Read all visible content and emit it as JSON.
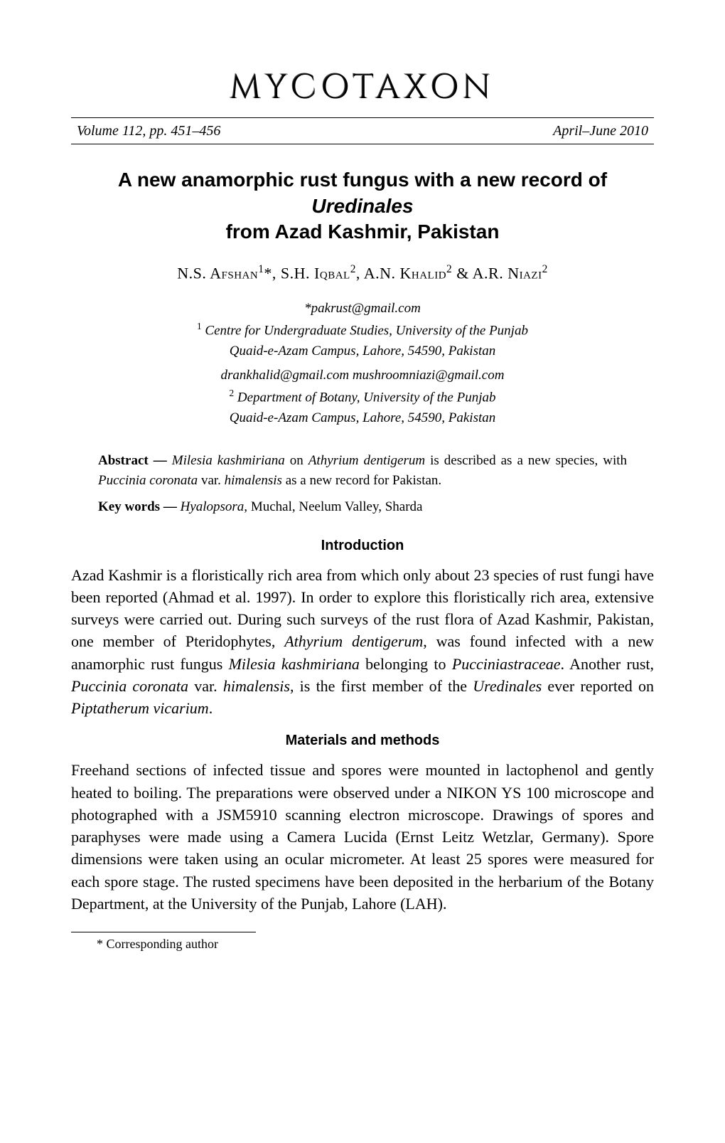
{
  "journal": {
    "title": "MYCOTAXON",
    "volume": "Volume 112, pp. 451–456",
    "date": "April–June 2010"
  },
  "article": {
    "title_line1": "A new anamorphic rust fungus with a new record of ",
    "title_italic": "Uredinales",
    "title_line2": "from Azad Kashmir, Pakistan"
  },
  "authors": {
    "a1_name": "N.S. Afshan",
    "a1_sup": "1",
    "a1_mark": "*",
    "sep1": ", ",
    "a2_name": "S.H. Iqbal",
    "a2_sup": "2",
    "sep2": ", ",
    "a3_name": "A.N. Khalid",
    "a3_sup": "2",
    "sep3": " & ",
    "a4_name": "A.R. Niazi",
    "a4_sup": "2"
  },
  "affiliations": {
    "email1": "*pakrust@gmail.com",
    "aff1_sup": "1",
    "aff1_line1": " Centre for Undergraduate Studies, University of the Punjab",
    "aff1_line2": "Quaid-e-Azam Campus, Lahore, 54590, Pakistan",
    "emails2": "drankhalid@gmail.com  mushroomniazi@gmail.com",
    "aff2_sup": "2",
    "aff2_line1": " Department of Botany, University of the Punjab",
    "aff2_line2": "Quaid-e-Azam Campus, Lahore, 54590, Pakistan"
  },
  "abstract": {
    "label": "Abstract — ",
    "i1": "Milesia kashmiriana",
    "t1": " on ",
    "i2": "Athyrium dentigerum",
    "t2": " is described as a new species, with ",
    "i3": "Puccinia coronata",
    "t3": " var. ",
    "i4": "himalensis",
    "t4": " as a new record for Pakistan."
  },
  "keywords": {
    "label": "Key words — ",
    "i1": "Hyalopsora,",
    "t1": " Muchal, Neelum Valley, Sharda"
  },
  "sections": {
    "intro_heading": "Introduction",
    "intro": {
      "t1": "Azad Kashmir is a floristically rich area from which only about 23 species of rust fungi have been reported (Ahmad et al. 1997). In order to explore this floristically rich area, extensive surveys were carried out. During such surveys of the rust flora of Azad Kashmir, Pakistan, one member of Pteridophytes, ",
      "i1": "Athyrium dentigerum",
      "t2": ", was found infected with a new anamorphic rust fungus ",
      "i2": "Milesia kashmiriana",
      "t3": " belonging to ",
      "i3": "Pucciniastraceae",
      "t4": ". Another rust, ",
      "i4": "Puccinia coronata",
      "t5": " var. ",
      "i5": "himalensis",
      "t6": ", is the first member of the ",
      "i6": "Uredinales",
      "t7": " ever reported on ",
      "i7": "Piptatherum vicarium",
      "t8": "."
    },
    "methods_heading": "Materials and methods",
    "methods": {
      "t1": "Freehand sections of infected tissue and spores were mounted in lactophenol and gently heated to boiling. The preparations were observed under a NIKON YS 100 microscope and photographed with a JSM5910 scanning electron microscope. Drawings of spores and paraphyses were made using a Camera Lucida (Ernst Leitz Wetzlar, Germany). Spore dimensions were taken using an ocular micrometer. At least 25 spores were measured for each spore stage. The rusted specimens have been deposited in the herbarium of the Botany Department, at the University of the Punjab, Lahore (LAH)."
    }
  },
  "footnote": {
    "text": "* Corresponding author"
  }
}
